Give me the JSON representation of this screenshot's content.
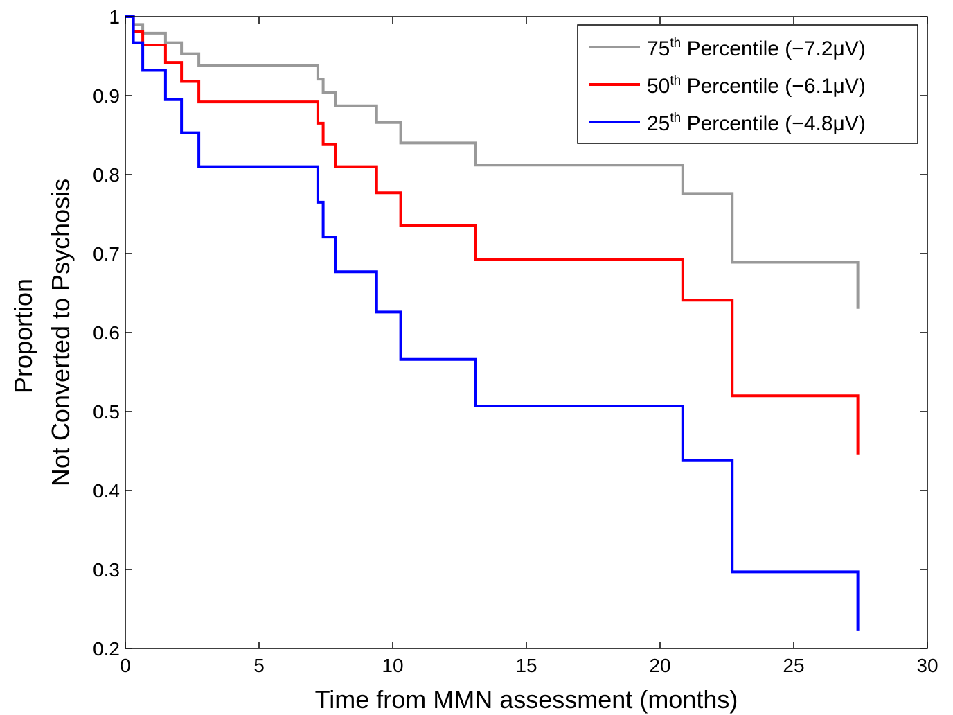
{
  "chart_data": {
    "type": "line",
    "step": true,
    "xlabel": "Time from MMN assessment (months)",
    "ylabel_lines": [
      "Proportion",
      "Not Converted to Psychosis"
    ],
    "xlim": [
      0,
      30
    ],
    "ylim": [
      0.2,
      1
    ],
    "xticks": [
      0,
      5,
      10,
      15,
      20,
      25,
      30
    ],
    "yticks": [
      0.2,
      0.3,
      0.4,
      0.5,
      0.6,
      0.7,
      0.8,
      0.9,
      1
    ],
    "ytick_labels": [
      "0.2",
      "0.3",
      "0.4",
      "0.5",
      "0.6",
      "0.7",
      "0.8",
      "0.9",
      "1"
    ],
    "grid": false,
    "legend_position": "top-right",
    "series": [
      {
        "name": "75",
        "legend": {
          "prefix": "75",
          "sup": "th",
          "suffix": " Percentile (−7.2μV)"
        },
        "color": "#999999",
        "x": [
          0,
          0.3,
          0.65,
          1.5,
          2.1,
          2.75,
          7.2,
          7.4,
          7.85,
          9.4,
          10.3,
          13.1,
          20.85,
          22.7,
          27.4,
          27.4
        ],
        "y": [
          1.0,
          0.99,
          0.979,
          0.967,
          0.953,
          0.938,
          0.921,
          0.904,
          0.887,
          0.866,
          0.84,
          0.812,
          0.776,
          0.689,
          0.689,
          0.63
        ]
      },
      {
        "name": "50",
        "legend": {
          "prefix": "50",
          "sup": "th",
          "suffix": " Percentile (−6.1μV)"
        },
        "color": "#ff0000",
        "x": [
          0,
          0.3,
          0.65,
          1.5,
          2.1,
          2.75,
          7.2,
          7.4,
          7.85,
          9.4,
          10.3,
          13.1,
          20.85,
          22.7,
          27.4,
          27.4
        ],
        "y": [
          1.0,
          0.981,
          0.964,
          0.942,
          0.918,
          0.892,
          0.865,
          0.838,
          0.81,
          0.777,
          0.736,
          0.693,
          0.641,
          0.52,
          0.52,
          0.445
        ]
      },
      {
        "name": "25",
        "legend": {
          "prefix": "25",
          "sup": "th",
          "suffix": " Percentile (−4.8μV)"
        },
        "color": "#0000ff",
        "x": [
          0,
          0.3,
          0.65,
          1.5,
          2.1,
          2.75,
          7.2,
          7.4,
          7.85,
          9.4,
          10.3,
          13.1,
          20.85,
          22.7,
          27.4,
          27.4
        ],
        "y": [
          1.0,
          0.967,
          0.932,
          0.895,
          0.853,
          0.81,
          0.765,
          0.721,
          0.677,
          0.626,
          0.566,
          0.507,
          0.438,
          0.297,
          0.297,
          0.222
        ]
      }
    ]
  }
}
